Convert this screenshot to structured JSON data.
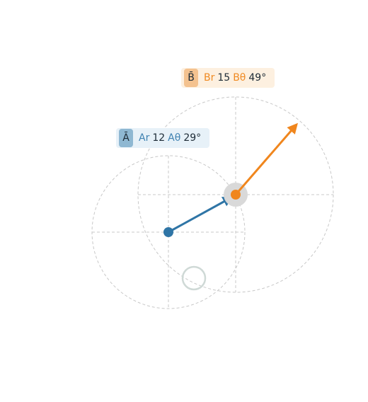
{
  "colors": {
    "vector_a": "#2f75a6",
    "vector_b": "#f0861d",
    "guide": "#c8c8c8",
    "handle_fill": "#d9d9d9",
    "ring": "#cfd9d6"
  },
  "vector_a": {
    "tag": "Ā",
    "r_label": "Ar",
    "r_value": "12",
    "theta_label": "Aθ",
    "theta_value": "29°"
  },
  "vector_b": {
    "tag": "B̄",
    "r_label": "Br",
    "r_value": "15",
    "theta_label": "Bθ",
    "theta_value": "49°"
  }
}
